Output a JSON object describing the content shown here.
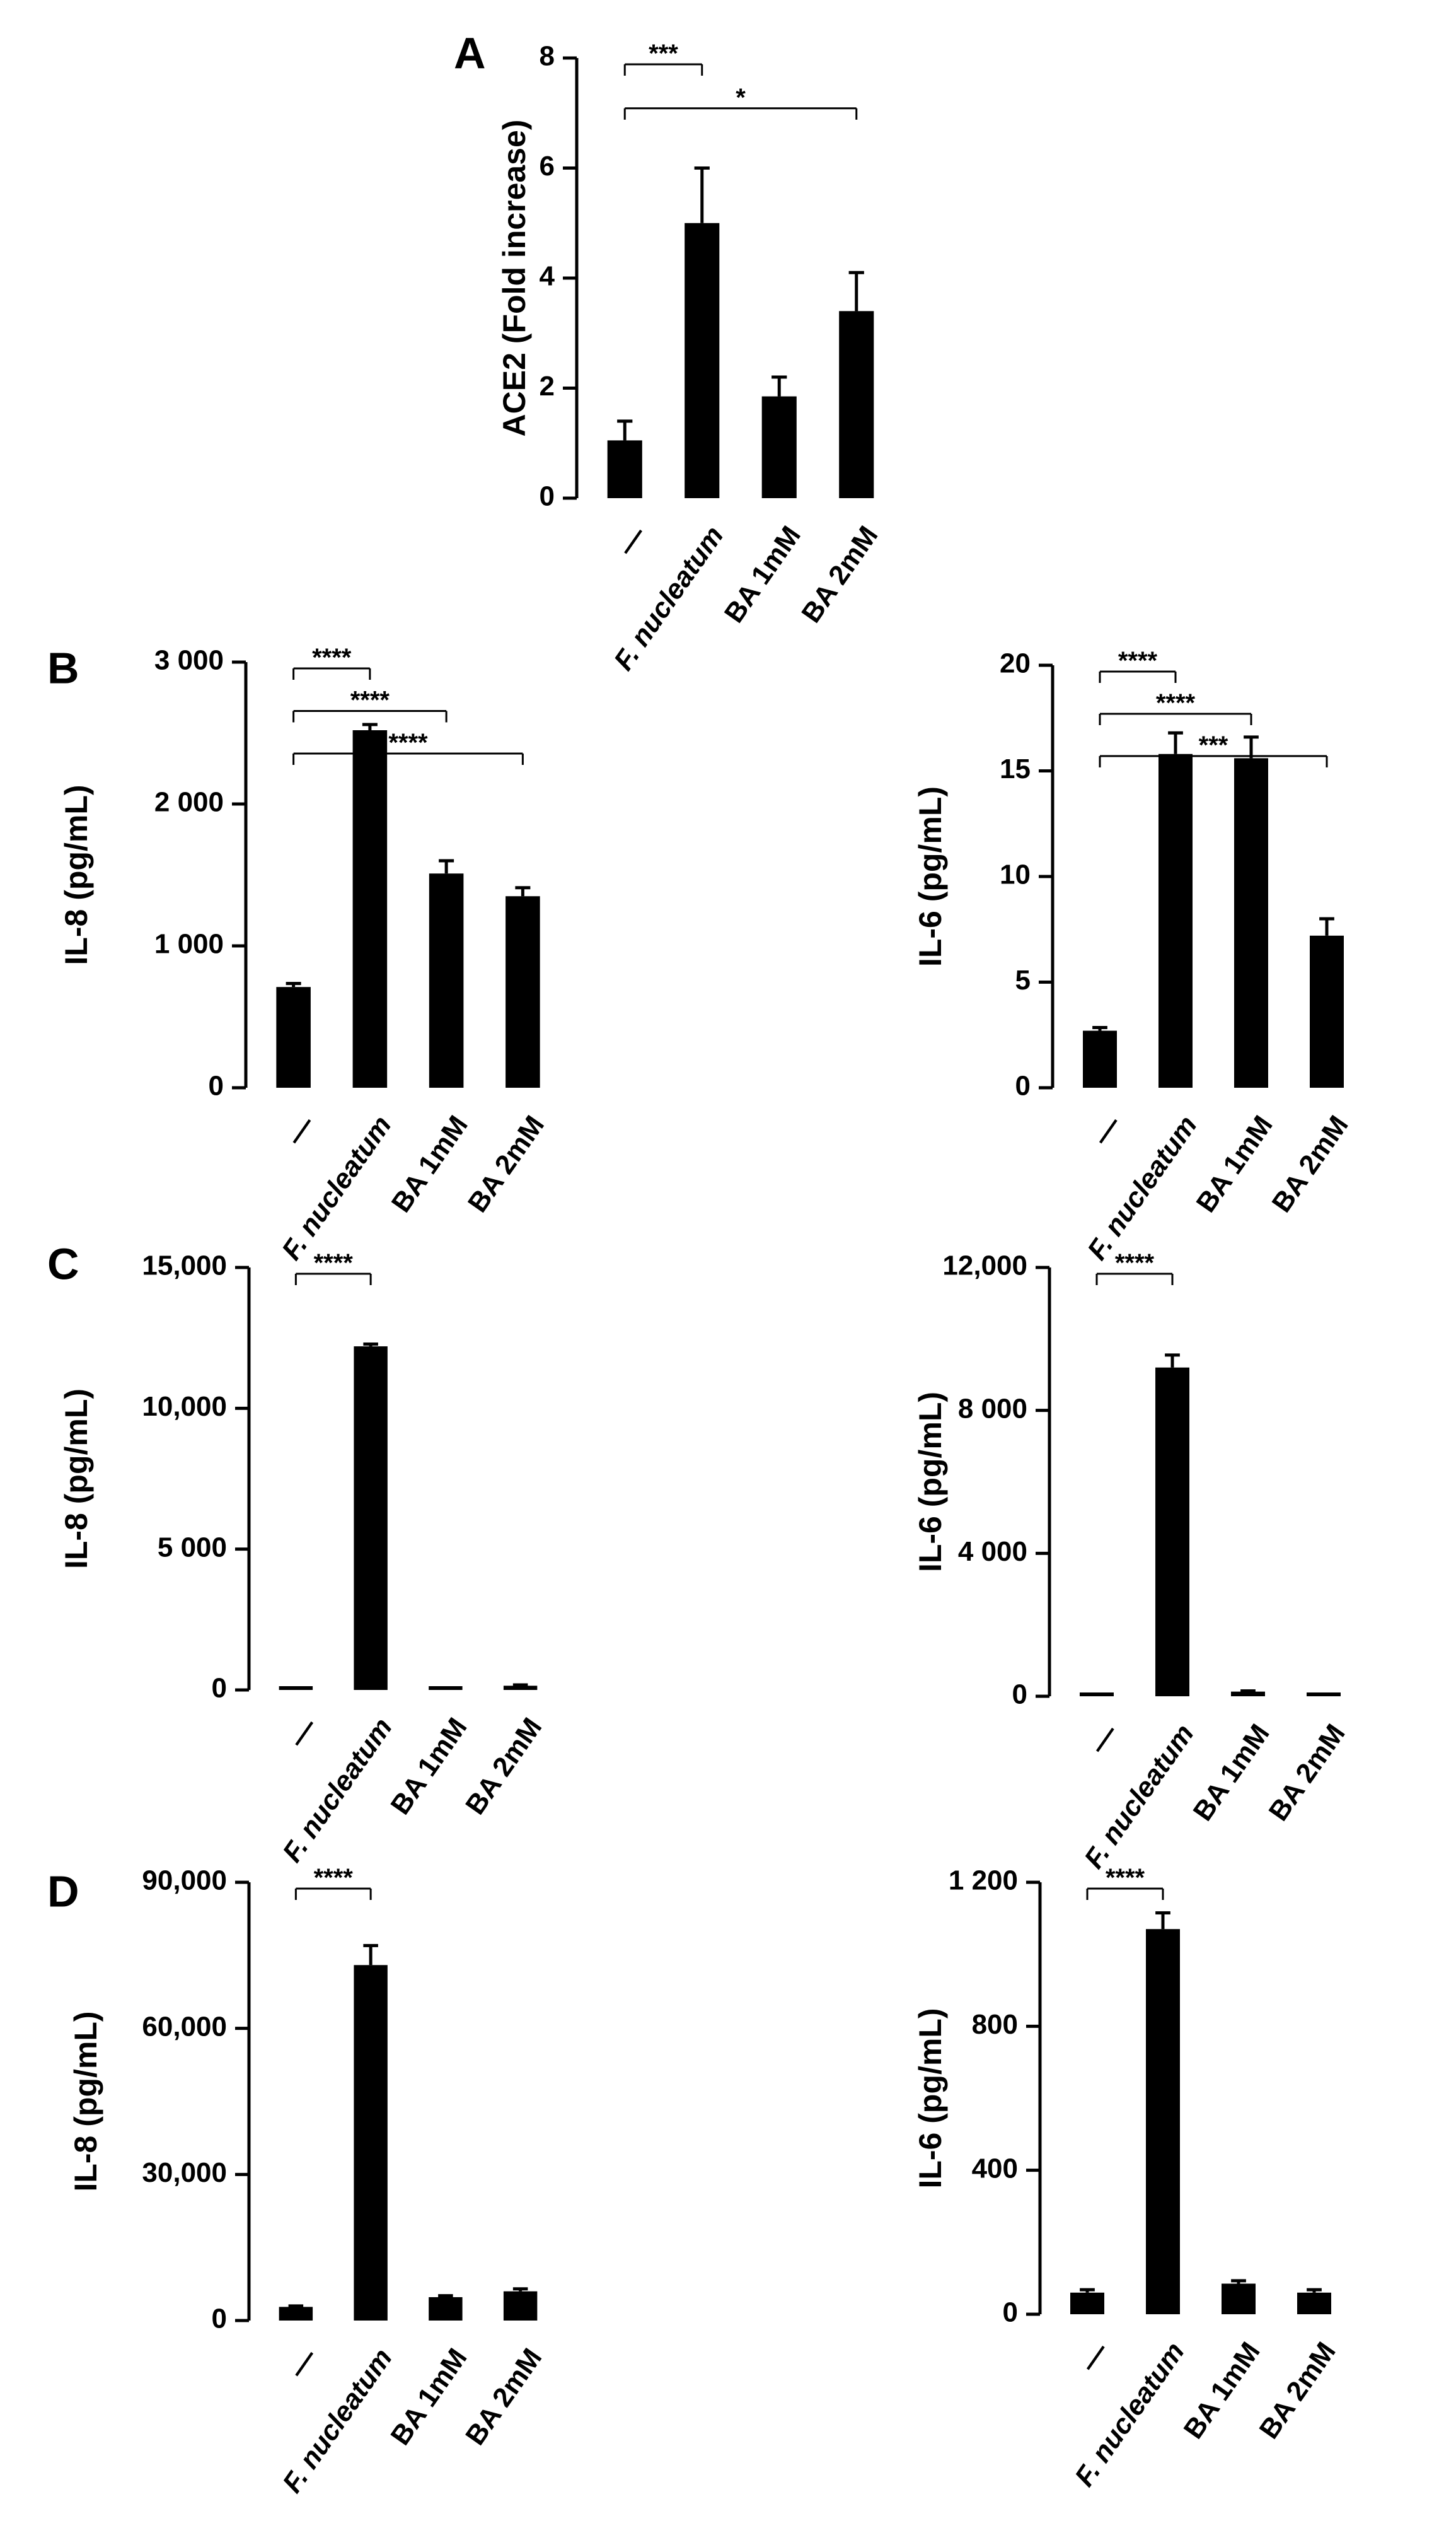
{
  "figure": {
    "bar_color": "#000000",
    "background": "#ffffff"
  },
  "chart_data": [
    {
      "panel_label": "A",
      "type": "bar",
      "ylabel": "ACE2 (Fold increase)",
      "ylim": [
        0,
        8
      ],
      "yticks": [
        0,
        2,
        4,
        6,
        8
      ],
      "ytick_labels": [
        "0",
        "2",
        "4",
        "6",
        "8"
      ],
      "categories": [
        "—",
        "F. nucleatum",
        "BA 1mM",
        "BA 2mM"
      ],
      "category_italic": [
        false,
        true,
        false,
        false
      ],
      "values": [
        1.05,
        5.0,
        1.85,
        3.4
      ],
      "errors": [
        0.35,
        1.0,
        0.35,
        0.7
      ],
      "significance": [
        {
          "from": 0,
          "to": 1,
          "label": "***"
        },
        {
          "from": 0,
          "to": 3,
          "label": "*"
        }
      ]
    },
    {
      "panel_label": "B",
      "type": "bar",
      "ylabel": "IL-8 (pg/mL)",
      "ylim": [
        0,
        3000
      ],
      "yticks": [
        0,
        1000,
        2000,
        3000
      ],
      "ytick_labels": [
        "0",
        "1 000",
        "2 000",
        "3 000"
      ],
      "categories": [
        "—",
        "F. nucleatum",
        "BA 1mM",
        "BA 2mM"
      ],
      "category_italic": [
        false,
        true,
        false,
        false
      ],
      "values": [
        710,
        2520,
        1510,
        1350
      ],
      "errors": [
        25,
        40,
        90,
        60
      ],
      "significance": [
        {
          "from": 0,
          "to": 1,
          "label": "****"
        },
        {
          "from": 0,
          "to": 2,
          "label": "****"
        },
        {
          "from": 0,
          "to": 3,
          "label": "****"
        }
      ]
    },
    {
      "panel_label": "",
      "type": "bar",
      "ylabel": "IL-6 (pg/mL)",
      "ylim": [
        0,
        20
      ],
      "yticks": [
        0,
        5,
        10,
        15,
        20
      ],
      "ytick_labels": [
        "0",
        "5",
        "10",
        "15",
        "20"
      ],
      "categories": [
        "—",
        "F. nucleatum",
        "BA 1mM",
        "BA 2mM"
      ],
      "category_italic": [
        false,
        true,
        false,
        false
      ],
      "values": [
        2.7,
        15.8,
        15.6,
        7.2
      ],
      "errors": [
        0.15,
        1.0,
        1.0,
        0.8
      ],
      "significance": [
        {
          "from": 0,
          "to": 1,
          "label": "****"
        },
        {
          "from": 0,
          "to": 2,
          "label": "****"
        },
        {
          "from": 0,
          "to": 3,
          "label": "***"
        }
      ]
    },
    {
      "panel_label": "C",
      "type": "bar",
      "ylabel": "IL-8 (pg/mL)",
      "ylim": [
        0,
        15000
      ],
      "yticks": [
        0,
        5000,
        10000,
        15000
      ],
      "ytick_labels": [
        "0",
        "5 000",
        "10,000",
        "15,000"
      ],
      "categories": [
        "—",
        "F. nucleatum",
        "BA 1mM",
        "BA 2mM"
      ],
      "category_italic": [
        false,
        true,
        false,
        false
      ],
      "values": [
        20,
        12200,
        30,
        150
      ],
      "errors": [
        0,
        80,
        0,
        30
      ],
      "significance": [
        {
          "from": 0,
          "to": 1,
          "label": "****"
        }
      ]
    },
    {
      "panel_label": "",
      "type": "bar",
      "ylabel": "IL-6 (pg/mL)",
      "ylim": [
        0,
        12000
      ],
      "yticks": [
        0,
        4000,
        8000,
        12000
      ],
      "ytick_labels": [
        "0",
        "4 000",
        "8 000",
        "12,000"
      ],
      "categories": [
        "—",
        "F. nucleatum",
        "BA 1mM",
        "BA 2mM"
      ],
      "category_italic": [
        false,
        true,
        false,
        false
      ],
      "values": [
        40,
        9200,
        130,
        40
      ],
      "errors": [
        0,
        350,
        20,
        0
      ],
      "significance": [
        {
          "from": 0,
          "to": 1,
          "label": "****"
        }
      ]
    },
    {
      "panel_label": "D",
      "type": "bar",
      "ylabel": "IL-8 (pg/mL)",
      "ylim": [
        0,
        90000
      ],
      "yticks": [
        0,
        30000,
        60000,
        90000
      ],
      "ytick_labels": [
        "0",
        "30,000",
        "60,000",
        "90,000"
      ],
      "categories": [
        "—",
        "F. nucleatum",
        "BA 1mM",
        "BA 2mM"
      ],
      "category_italic": [
        false,
        true,
        false,
        false
      ],
      "values": [
        2800,
        73000,
        4800,
        6000
      ],
      "errors": [
        200,
        4000,
        300,
        500
      ],
      "significance": [
        {
          "from": 0,
          "to": 1,
          "label": "****"
        }
      ]
    },
    {
      "panel_label": "",
      "type": "bar",
      "ylabel": "IL-6 (pg/mL)",
      "ylim": [
        0,
        1200
      ],
      "yticks": [
        0,
        400,
        800,
        1200
      ],
      "ytick_labels": [
        "0",
        "400",
        "800",
        "1 200"
      ],
      "categories": [
        "—",
        "F. nucleatum",
        "BA 1mM",
        "BA 2mM"
      ],
      "category_italic": [
        false,
        true,
        false,
        false
      ],
      "values": [
        60,
        1070,
        85,
        60
      ],
      "errors": [
        8,
        45,
        8,
        8
      ],
      "significance": [
        {
          "from": 0,
          "to": 1,
          "label": "****"
        }
      ]
    }
  ]
}
